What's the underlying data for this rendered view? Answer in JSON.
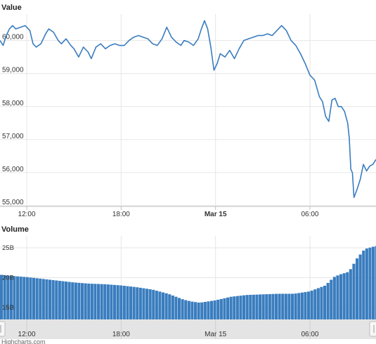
{
  "chart_data": [
    {
      "type": "line",
      "title": "Value",
      "ylim": [
        55000,
        60800
      ],
      "yticks": [
        "55,000",
        "56,000",
        "57,000",
        "58,000",
        "59,000",
        "60,000"
      ],
      "ytick_values": [
        55000,
        56000,
        57000,
        58000,
        59000,
        60000
      ],
      "xticks": [
        "12:00",
        "18:00",
        "Mar 15",
        "06:00"
      ],
      "xtick_hours": [
        12,
        18,
        24,
        30
      ],
      "xtick_bold": [
        false,
        false,
        true,
        false
      ],
      "x_range_hours": [
        10.3,
        34.2
      ],
      "color": "#3a7dbf",
      "grid": true,
      "series": [
        {
          "x": [
            10.3,
            10.5,
            10.7,
            10.9,
            11.1,
            11.3,
            11.6,
            11.9,
            12.2,
            12.4,
            12.6,
            12.9,
            13.2,
            13.4,
            13.7,
            14.0,
            14.2,
            14.5,
            14.8,
            15.0,
            15.3,
            15.6,
            15.9,
            16.1,
            16.4,
            16.7,
            17.0,
            17.3,
            17.6,
            17.9,
            18.2,
            18.5,
            18.8,
            19.1,
            19.4,
            19.7,
            20.0,
            20.3,
            20.6,
            20.9,
            21.2,
            21.5,
            21.8,
            22.0,
            22.3,
            22.6,
            22.9,
            23.1,
            23.3,
            23.5,
            23.7,
            23.9,
            24.1,
            24.3,
            24.6,
            24.9,
            25.2,
            25.5,
            25.8,
            26.1,
            26.4,
            26.7,
            27.0,
            27.3,
            27.6,
            27.9,
            28.2,
            28.5,
            28.8,
            29.1,
            29.4,
            29.7,
            30.0,
            30.3,
            30.6,
            30.8,
            31.0,
            31.2,
            31.4,
            31.6,
            31.8,
            32.0,
            32.2,
            32.4,
            32.5,
            32.6,
            32.7,
            32.8,
            33.0,
            33.2,
            33.4,
            33.6,
            33.8,
            34.0,
            34.2
          ],
          "y": [
            60000,
            59850,
            60150,
            60350,
            60450,
            60350,
            60400,
            60450,
            60300,
            59900,
            59800,
            59900,
            60200,
            60350,
            60250,
            60000,
            59900,
            60050,
            59850,
            59750,
            59500,
            59800,
            59650,
            59450,
            59800,
            59900,
            59750,
            59850,
            59900,
            59850,
            59850,
            60000,
            60100,
            60150,
            60100,
            60050,
            59900,
            59850,
            60050,
            60400,
            60100,
            59950,
            59850,
            60000,
            59950,
            59850,
            60050,
            60350,
            60600,
            60350,
            59800,
            59100,
            59300,
            59600,
            59500,
            59700,
            59450,
            59750,
            60000,
            60050,
            60100,
            60150,
            60150,
            60200,
            60150,
            60300,
            60450,
            60300,
            60000,
            59850,
            59600,
            59300,
            58950,
            58800,
            58300,
            58150,
            57700,
            57550,
            58200,
            58250,
            58000,
            58000,
            57850,
            57500,
            57050,
            56100,
            56000,
            55250,
            55500,
            55800,
            56250,
            56050,
            56200,
            56250,
            56400
          ]
        }
      ]
    },
    {
      "type": "area",
      "title": "Volume",
      "ylim": [
        13000000000,
        27000000000
      ],
      "yticks": [
        "15B",
        "20B",
        "25B"
      ],
      "ytick_values": [
        15000000000,
        20000000000,
        25000000000
      ],
      "xticks": [
        "12:00",
        "18:00",
        "Mar 15",
        "06:00"
      ],
      "xtick_hours": [
        12,
        18,
        24,
        30
      ],
      "color": "#3a7dbf",
      "series": [
        {
          "x": [
            10.3,
            11.0,
            12.0,
            13.0,
            14.0,
            15.0,
            16.0,
            17.0,
            18.0,
            19.0,
            20.0,
            21.0,
            21.5,
            22.0,
            22.5,
            23.0,
            24.0,
            25.0,
            26.0,
            27.0,
            28.0,
            29.0,
            30.0,
            30.5,
            31.0,
            31.3,
            31.6,
            32.0,
            32.5,
            33.0,
            33.5,
            34.2
          ],
          "y": [
            20500000000,
            20300000000,
            20100000000,
            19800000000,
            19500000000,
            19200000000,
            19000000000,
            18900000000,
            18700000000,
            18400000000,
            18000000000,
            17300000000,
            16800000000,
            16300000000,
            16000000000,
            15800000000,
            16200000000,
            16800000000,
            17100000000,
            17200000000,
            17300000000,
            17300000000,
            17700000000,
            18200000000,
            18700000000,
            19500000000,
            20200000000,
            20600000000,
            21000000000,
            23200000000,
            24800000000,
            25300000000
          ]
        }
      ]
    }
  ],
  "credit": "Highcharts.com"
}
